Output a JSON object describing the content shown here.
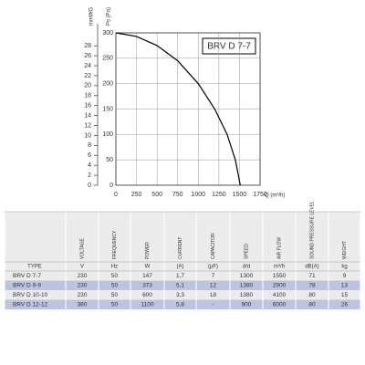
{
  "chart_data": {
    "type": "line",
    "xlabel": "Q (m³/h)",
    "ylabel": "Ps (Pa)",
    "y2label": "mmWG",
    "x": [
      0,
      250,
      500,
      750,
      1000,
      1200,
      1350,
      1450,
      1510
    ],
    "series": [
      {
        "name": "BRV D 7-7",
        "color": "#000000",
        "values": [
          300,
          293,
          275,
          245,
          200,
          150,
          100,
          50,
          0
        ]
      }
    ],
    "xlim": [
      0,
      1750
    ],
    "xticks": [
      0,
      250,
      500,
      750,
      1000,
      1250,
      1500,
      1750
    ],
    "ylim": [
      0,
      300
    ],
    "yticks": [
      0,
      50,
      100,
      150,
      200,
      250,
      300
    ],
    "y2lim": [
      0,
      30.6
    ],
    "y2ticks": [
      0,
      2,
      4,
      6,
      8,
      10,
      12,
      14,
      16,
      18,
      20,
      22,
      24,
      26,
      28
    ],
    "grid": true
  },
  "table": {
    "header": [
      "TYPE",
      "VOLTAGE",
      "FREQUENCY",
      "POWER",
      "CURRENT",
      "CAPACITOR",
      "SPEED",
      "AIR FLOW",
      "SOUND PRESSURE LEVEL",
      "WEIGHT"
    ],
    "units": [
      "V",
      "Hz",
      "W",
      "(A)",
      "(μF)",
      "d/d",
      "m³/h",
      "dB(A)",
      "kg"
    ],
    "rows": [
      [
        "BRV D 7-7",
        "230",
        "50",
        "147",
        "1,7",
        "7",
        "1300",
        "1550",
        "71",
        "9"
      ],
      [
        "BRV D 9-9",
        "230",
        "50",
        "373",
        "5,1",
        "12",
        "1380",
        "2900",
        "78",
        "13"
      ],
      [
        "BRV D 10-10",
        "230",
        "50",
        "600",
        "3,3",
        "18",
        "1380",
        "4100",
        "80",
        "15"
      ],
      [
        "BRV D 12-12",
        "380",
        "50",
        "1100",
        "5,8",
        "-",
        "900",
        "6000",
        "80",
        "26"
      ]
    ]
  }
}
